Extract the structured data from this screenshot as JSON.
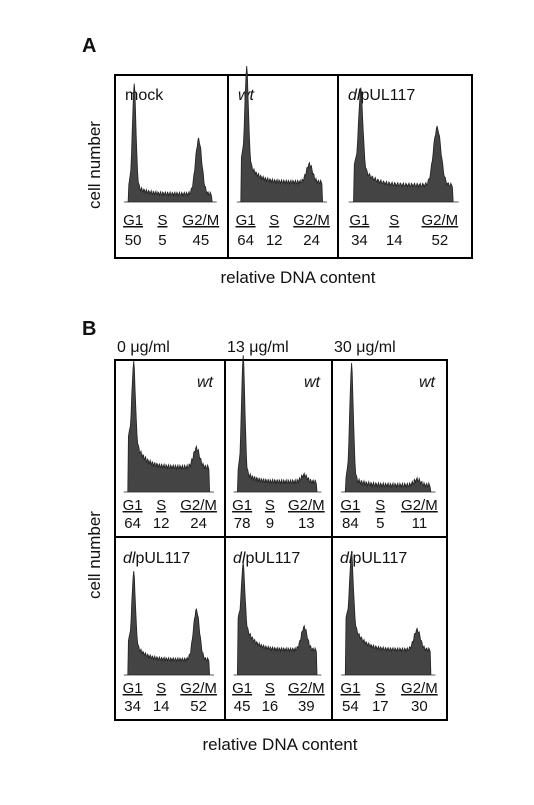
{
  "panel_a": {
    "label": "A",
    "y_label": "cell number",
    "x_label": "relative DNA content",
    "phase_labels": [
      "G1",
      "S",
      "G2/M"
    ],
    "samples": [
      {
        "name": [
          {
            "text": "mock",
            "italic": false
          }
        ],
        "percentages": [
          "50",
          "5",
          "45"
        ]
      },
      {
        "name": [
          {
            "text": "wt",
            "italic": true
          }
        ],
        "percentages": [
          "64",
          "12",
          "24"
        ]
      },
      {
        "name": [
          {
            "text": "dl",
            "italic": true
          },
          {
            "text": "pUL117",
            "italic": false
          }
        ],
        "percentages": [
          "34",
          "14",
          "52"
        ]
      }
    ]
  },
  "panel_b": {
    "label": "B",
    "y_label": "cell number",
    "x_label": "relative DNA content",
    "phase_labels": [
      "G1",
      "S",
      "G2/M"
    ],
    "concentrations": [
      "0 μg/ml",
      "13 μg/ml",
      "30 μg/ml"
    ],
    "rows": [
      {
        "name": [
          {
            "text": "wt",
            "italic": true
          }
        ],
        "percentages": [
          [
            "64",
            "12",
            "24"
          ],
          [
            "78",
            "9",
            "13"
          ],
          [
            "84",
            "5",
            "11"
          ]
        ]
      },
      {
        "name": [
          {
            "text": "dl",
            "italic": true
          },
          {
            "text": "pUL117",
            "italic": false
          }
        ],
        "percentages": [
          [
            "34",
            "14",
            "52"
          ],
          [
            "45",
            "16",
            "39"
          ],
          [
            "54",
            "17",
            "30"
          ]
        ]
      }
    ]
  }
}
